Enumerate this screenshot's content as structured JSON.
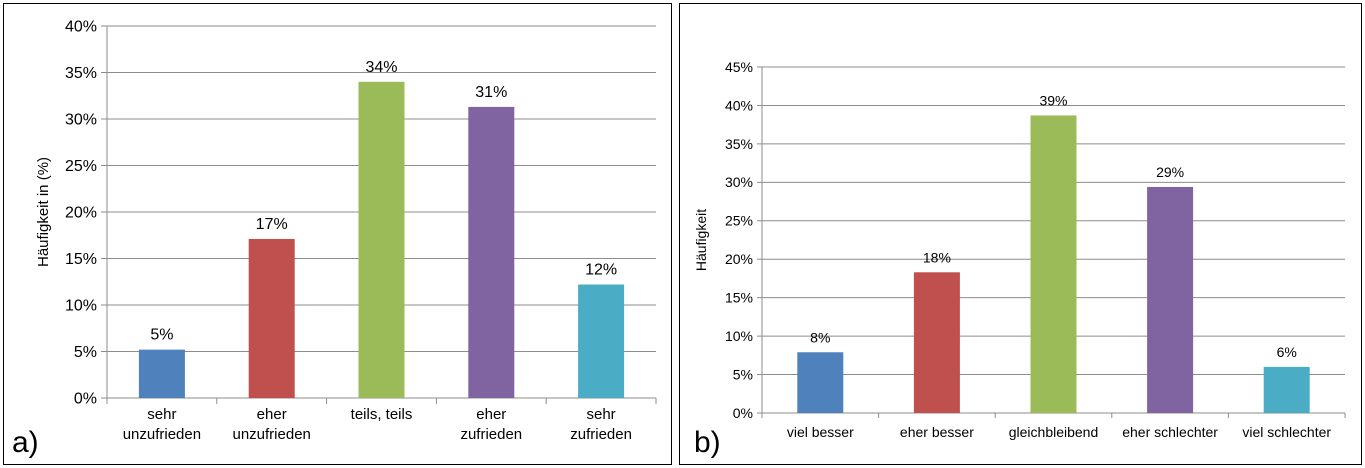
{
  "chart_data": [
    {
      "type": "bar",
      "panel_label": "a)",
      "ylabel": "Häufigkeit in (%)",
      "xlabel": "",
      "ylim": [
        0,
        40
      ],
      "yticks": [
        "0%",
        "5%",
        "10%",
        "15%",
        "20%",
        "25%",
        "30%",
        "35%",
        "40%"
      ],
      "grid": true,
      "categories": [
        [
          "sehr",
          "unzufrieden"
        ],
        [
          "eher",
          "unzufrieden"
        ],
        [
          "teils, teils"
        ],
        [
          "eher",
          "zufrieden"
        ],
        [
          "sehr",
          "zufrieden"
        ]
      ],
      "values": [
        5.2,
        17.1,
        34.0,
        31.3,
        12.2
      ],
      "data_labels": [
        "5%",
        "17%",
        "34%",
        "31%",
        "12%"
      ],
      "colors": [
        "#4f81bd",
        "#c0504d",
        "#9bbb59",
        "#8064a2",
        "#4bacc6"
      ]
    },
    {
      "type": "bar",
      "panel_label": "b)",
      "ylabel": "Häufigkeit",
      "xlabel": "",
      "ylim": [
        0,
        45
      ],
      "yticks": [
        "0%",
        "5%",
        "10%",
        "15%",
        "20%",
        "25%",
        "30%",
        "35%",
        "40%",
        "45%"
      ],
      "grid": true,
      "categories": [
        [
          "viel besser"
        ],
        [
          "eher besser"
        ],
        [
          "gleichbleibend"
        ],
        [
          "eher schlechter"
        ],
        [
          "viel schlechter"
        ]
      ],
      "values": [
        7.9,
        18.3,
        38.7,
        29.4,
        6.0
      ],
      "data_labels": [
        "8%",
        "18%",
        "39%",
        "29%",
        "6%"
      ],
      "colors": [
        "#4f81bd",
        "#c0504d",
        "#9bbb59",
        "#8064a2",
        "#4bacc6"
      ]
    }
  ]
}
